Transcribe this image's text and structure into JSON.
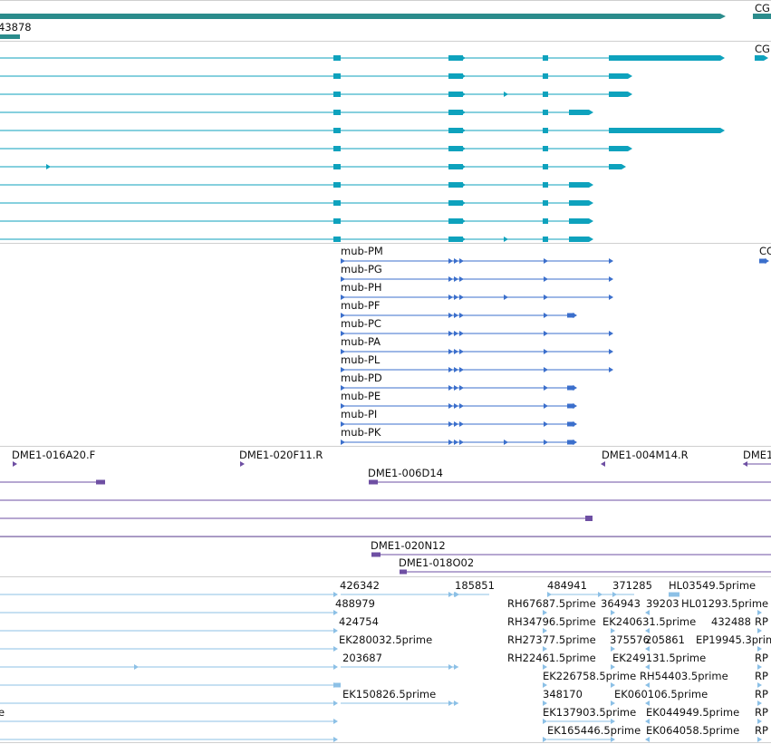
{
  "colors": {
    "gene": "#2b8c8c",
    "transcript": "#0ea2bd",
    "model": "#3b6fcc",
    "bac": "#6e4fa3",
    "est": "#8cc0e6",
    "divider": "#cfcfcf"
  },
  "tracks": {
    "gene": {
      "name_label": "43878",
      "right_label": "CG"
    },
    "transcripts": {
      "right_label": "CG"
    },
    "models": {
      "right_label": "CG",
      "rows": [
        {
          "label": "mub-PM"
        },
        {
          "label": "mub-PG"
        },
        {
          "label": "mub-PH"
        },
        {
          "label": "mub-PF"
        },
        {
          "label": "mub-PC"
        },
        {
          "label": "mub-PA"
        },
        {
          "label": "mub-PL"
        },
        {
          "label": "mub-PD"
        },
        {
          "label": "mub-PE"
        },
        {
          "label": "mub-PI"
        },
        {
          "label": "mub-PK"
        }
      ]
    },
    "bac": {
      "labels": [
        "DME1-016A20.F",
        "DME1-020F11.R",
        "DME1-004M14.R",
        "DME1",
        "DME1-006D14",
        "DME1-020N12",
        "DME1-018O02"
      ]
    },
    "est": {
      "labels": [
        "426342",
        "185851",
        "484941",
        "371285",
        "HL03549.5prime",
        "488979",
        "RH67687.5prime",
        "364943",
        "39203",
        "HL01293.5prime",
        "424754",
        "RH34796.5prime",
        "EK240631.5prime",
        "432488",
        "RP",
        "EK280032.5prime",
        "RH27377.5prime",
        "375576",
        "205861",
        "EP19945.3prime",
        "203687",
        "RH22461.5prime",
        "EK249131.5prime",
        "RP",
        "EK226758.5prime",
        "RH54403.5prime",
        "RP",
        "EK150826.5prime",
        "348170",
        "EK060106.5prime",
        "RP",
        "e",
        "EK137903.5prime",
        "EK044949.5prime",
        "RP",
        "EK165446.5prime",
        "EK064058.5prime",
        "RP"
      ]
    }
  }
}
